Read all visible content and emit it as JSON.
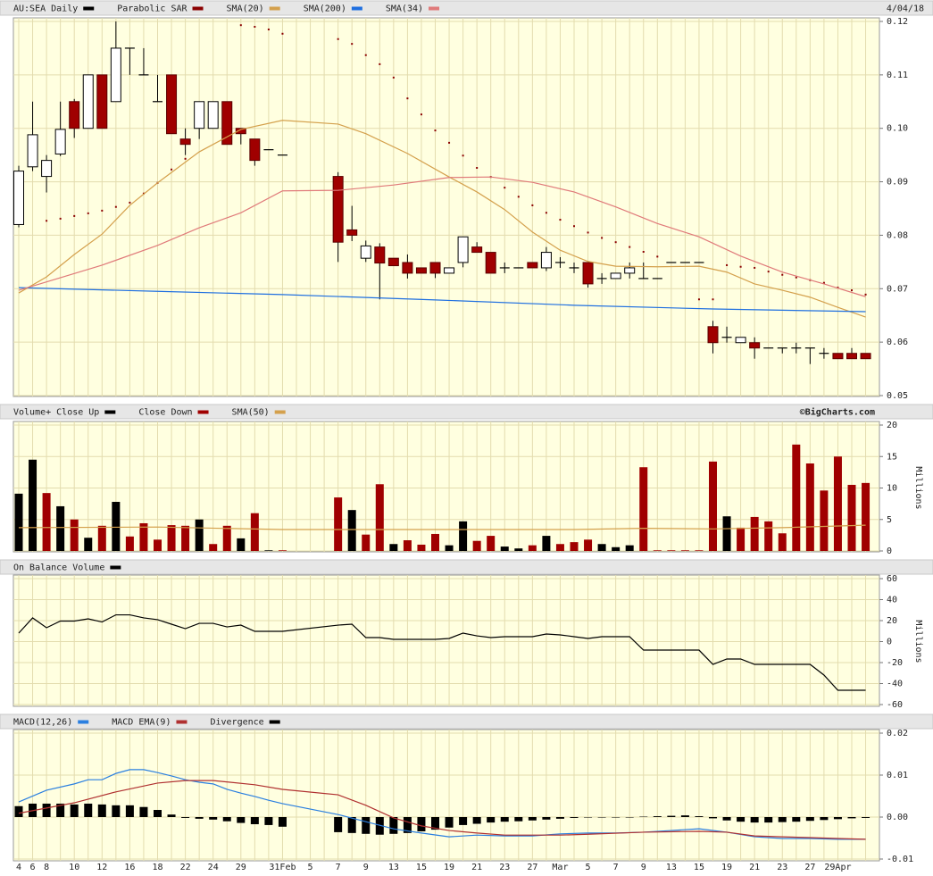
{
  "chart_data": [
    {
      "type": "candlestick",
      "title": "AU:SEA Daily",
      "title_color": "#000000",
      "date": "4/04/18",
      "up_color": "#ffffff",
      "down_color": "#a00000",
      "ylim": [
        0.05,
        0.12
      ],
      "yticks": [
        0.12,
        0.11,
        {
          "value": 0.1,
          "label": "0.10"
        },
        0.09,
        0.08,
        0.07,
        0.06,
        0.05
      ],
      "open": [
        0.082,
        0.0928,
        0.091,
        0.0952,
        0.105,
        0.1,
        0.11,
        0.105,
        0.115,
        0.11,
        0.105,
        0.11,
        0.098,
        0.1,
        0.1,
        0.105,
        0.1,
        0.098,
        0.096,
        0.095,
        null,
        null,
        null,
        0.091,
        0.081,
        0.0757,
        0.0778,
        0.0757,
        0.0749,
        0.0739,
        0.0749,
        0.0729,
        0.0749,
        0.0778,
        0.0768,
        0.0739,
        0.0739,
        0.0749,
        0.0739,
        0.0749,
        0.0739,
        0.0749,
        0.0719,
        0.0719,
        0.0729,
        0.0719,
        0.0719,
        0.0749,
        0.0749,
        0.0749,
        0.0629,
        0.0609,
        0.0599,
        0.0599,
        0.0589,
        0.0589,
        0.0589,
        0.0589,
        0.0579,
        0.0579,
        0.0579,
        0.0579
      ],
      "high": [
        0.093,
        0.105,
        0.095,
        0.105,
        0.1055,
        0.11,
        0.11,
        0.12,
        0.115,
        0.115,
        0.11,
        0.11,
        0.1,
        0.105,
        0.105,
        0.105,
        0.1,
        0.098,
        0.096,
        0.095,
        null,
        null,
        null,
        0.0918,
        0.0855,
        0.079,
        0.0785,
        0.0757,
        0.0764,
        0.0739,
        0.0749,
        0.0739,
        0.0797,
        0.0787,
        0.0768,
        0.0749,
        0.0739,
        0.0749,
        0.0778,
        0.0759,
        0.0749,
        0.0749,
        0.0729,
        0.0729,
        0.0749,
        0.0749,
        0.0719,
        0.0749,
        0.0749,
        0.0749,
        0.064,
        0.0629,
        0.0609,
        0.0609,
        0.0589,
        0.0589,
        0.0599,
        0.0589,
        0.0589,
        0.0579,
        0.0589,
        0.0579
      ],
      "low": [
        0.0815,
        0.092,
        0.088,
        0.0948,
        0.0982,
        0.1,
        0.1,
        0.105,
        0.11,
        0.11,
        0.105,
        0.099,
        0.095,
        0.098,
        0.1,
        0.097,
        0.097,
        0.093,
        0.096,
        0.095,
        null,
        null,
        null,
        0.075,
        0.0789,
        0.075,
        0.068,
        0.0743,
        0.0719,
        0.0729,
        0.072,
        0.0729,
        0.074,
        0.0768,
        0.0729,
        0.0729,
        0.0739,
        0.0739,
        0.0733,
        0.0739,
        0.0729,
        0.0702,
        0.0709,
        0.0719,
        0.0719,
        0.0719,
        0.0719,
        0.0749,
        0.0749,
        0.0749,
        0.0579,
        0.0599,
        0.0599,
        0.0569,
        0.0589,
        0.0579,
        0.0579,
        0.0559,
        0.0569,
        0.0569,
        0.0569,
        0.0569
      ],
      "close": [
        0.092,
        0.0988,
        0.094,
        0.0998,
        0.1,
        0.11,
        0.1,
        0.115,
        0.115,
        0.11,
        0.105,
        0.099,
        0.097,
        0.105,
        0.105,
        0.097,
        0.099,
        0.094,
        0.096,
        0.095,
        null,
        null,
        null,
        0.0787,
        0.08,
        0.078,
        0.0748,
        0.0743,
        0.0729,
        0.0729,
        0.0729,
        0.0739,
        0.0797,
        0.0768,
        0.0729,
        0.0739,
        0.0739,
        0.0739,
        0.0768,
        0.0749,
        0.0739,
        0.0709,
        0.0719,
        0.0729,
        0.0739,
        0.0719,
        0.0719,
        0.0749,
        0.0749,
        0.0749,
        0.0599,
        0.0609,
        0.0609,
        0.0589,
        0.0589,
        0.0589,
        0.0589,
        0.0589,
        0.0579,
        0.0569,
        0.0569,
        0.0569
      ],
      "series": [
        {
          "name": "Parabolic SAR",
          "color": "#8b0000",
          "style": "dots",
          "x": [
            2,
            3,
            4,
            5,
            6,
            7,
            8,
            9,
            10,
            11,
            12,
            16,
            17,
            18,
            19,
            23,
            24,
            25,
            26,
            27,
            28,
            29,
            30,
            31,
            32,
            33,
            34,
            35,
            36,
            37,
            38,
            39,
            40,
            41,
            42,
            43,
            44,
            45,
            46,
            49,
            50,
            51,
            52,
            53,
            54,
            55,
            56,
            57,
            58,
            59,
            60,
            61
          ],
          "values": [
            0.0827,
            0.0831,
            0.0836,
            0.0841,
            0.0846,
            0.0853,
            0.0861,
            0.0878,
            0.0898,
            0.0923,
            0.0943,
            0.1193,
            0.119,
            0.1185,
            0.1177,
            0.1167,
            0.1158,
            0.1137,
            0.112,
            0.1095,
            0.1056,
            0.1026,
            0.0996,
            0.0973,
            0.0949,
            0.0926,
            0.0909,
            0.0889,
            0.0872,
            0.0856,
            0.0842,
            0.0829,
            0.0817,
            0.0805,
            0.0795,
            0.0787,
            0.0778,
            0.0769,
            0.076,
            0.068,
            0.068,
            0.0744,
            0.0741,
            0.0739,
            0.0732,
            0.0726,
            0.0721,
            0.0716,
            0.0711,
            0.0702,
            0.0697,
            0.0689
          ]
        },
        {
          "name": "SMA(20)",
          "color": "#d4a04c",
          "x": [
            0,
            2,
            4,
            6,
            8,
            10,
            13,
            16,
            19,
            23,
            25,
            28,
            31,
            33,
            35,
            37,
            39,
            41,
            43,
            46,
            49,
            51,
            53,
            55,
            57,
            59,
            61
          ],
          "values": [
            0.0692,
            0.0722,
            0.0764,
            0.0802,
            0.0856,
            0.0898,
            0.0956,
            0.0998,
            0.1015,
            0.1008,
            0.099,
            0.0953,
            0.0909,
            0.0881,
            0.0848,
            0.0806,
            0.0772,
            0.0751,
            0.0742,
            0.0741,
            0.0742,
            0.0731,
            0.0709,
            0.0697,
            0.0684,
            0.0665,
            0.0647
          ]
        },
        {
          "name": "SMA(200)",
          "color": "#1f6fe0",
          "x": [
            0,
            10,
            19,
            30,
            40,
            50,
            61
          ],
          "values": [
            0.0702,
            0.0695,
            0.0689,
            0.0679,
            0.0669,
            0.0662,
            0.0657
          ]
        },
        {
          "name": "SMA(34)",
          "color": "#e07a7a",
          "x": [
            0,
            6,
            10,
            13,
            16,
            19,
            23,
            27,
            31,
            34,
            37,
            40,
            43,
            46,
            49,
            52,
            55,
            58,
            61
          ],
          "values": [
            0.0697,
            0.0744,
            0.0781,
            0.0814,
            0.0842,
            0.0883,
            0.0884,
            0.0894,
            0.0908,
            0.0909,
            0.0899,
            0.0881,
            0.0853,
            0.0822,
            0.0797,
            0.0761,
            0.0731,
            0.0709,
            0.0685
          ]
        }
      ]
    },
    {
      "type": "volume",
      "credit": "©BigCharts.com",
      "ylabel": "Millions",
      "ylim": [
        0,
        20
      ],
      "yticks": [
        20,
        15,
        10,
        5,
        0
      ],
      "series": [
        {
          "name": "Volume+ Close Up",
          "color": "#000000",
          "values": [
            9.1,
            14.5,
            null,
            7.1,
            null,
            2.1,
            null,
            7.8,
            null,
            null,
            null,
            null,
            null,
            5,
            null,
            null,
            2,
            null,
            0.1,
            null,
            null,
            null,
            null,
            null,
            6.5,
            null,
            null,
            1.1,
            null,
            null,
            null,
            0.9,
            4.7,
            null,
            null,
            0.7,
            0.4,
            null,
            2.4,
            null,
            null,
            null,
            1.1,
            0.6,
            0.9,
            null,
            null,
            null,
            null,
            null,
            null,
            5.5,
            null,
            null,
            null,
            null,
            null,
            null,
            null,
            null,
            null,
            null
          ]
        },
        {
          "name": "Close Down",
          "color": "#a00000",
          "values": [
            null,
            null,
            9.2,
            null,
            5,
            null,
            4,
            null,
            2.3,
            4.4,
            1.8,
            4.1,
            4,
            null,
            1.1,
            4,
            null,
            6,
            null,
            0.1,
            null,
            null,
            null,
            8.5,
            null,
            2.6,
            10.6,
            null,
            1.7,
            1,
            2.7,
            null,
            null,
            1.6,
            2.4,
            null,
            null,
            0.9,
            null,
            1.1,
            1.4,
            1.8,
            null,
            null,
            null,
            13.3,
            0.1,
            0.1,
            0.1,
            0.1,
            14.2,
            null,
            3.7,
            5.4,
            4.7,
            2.8,
            16.9,
            13.9,
            9.6,
            15,
            10.5,
            10.8
          ]
        },
        {
          "name": "SMA(50)",
          "color": "#d4a04c",
          "x": [
            0,
            10,
            19,
            23,
            30,
            40,
            45,
            50,
            55,
            61
          ],
          "values": [
            3.7,
            3.8,
            3.4,
            3.4,
            3.4,
            3.4,
            3.6,
            3.5,
            3.7,
            4.1
          ]
        }
      ]
    },
    {
      "type": "line",
      "ylabel": "Millions",
      "ylim": [
        -60,
        60
      ],
      "yticks": [
        60,
        40,
        20,
        0,
        -20,
        -40,
        -60
      ],
      "series": [
        {
          "name": "On Balance Volume",
          "color": "#000000",
          "x": [
            0,
            1,
            2,
            3,
            4,
            5,
            6,
            7,
            8,
            9,
            10,
            11,
            12,
            13,
            14,
            15,
            16,
            17,
            18,
            19,
            23,
            24,
            25,
            26,
            27,
            28,
            29,
            30,
            31,
            32,
            33,
            34,
            35,
            36,
            37,
            38,
            39,
            40,
            41,
            42,
            43,
            44,
            45,
            46,
            47,
            48,
            49,
            50,
            51,
            52,
            53,
            54,
            55,
            56,
            57,
            58,
            59,
            60,
            61
          ],
          "values": [
            8.1,
            22.6,
            13.2,
            19.6,
            19.6,
            21.7,
            18.7,
            25.5,
            25.5,
            22.6,
            20.9,
            16.6,
            12.3,
            17.4,
            17.4,
            14,
            15.7,
            9.8,
            9.8,
            9.8,
            15.7,
            16.6,
            3.8,
            3.8,
            2.1,
            2.1,
            2.1,
            2.1,
            3,
            8.1,
            5.5,
            3.8,
            4.7,
            4.7,
            4.7,
            7.2,
            6.4,
            4.7,
            3,
            4.7,
            4.7,
            4.7,
            -8.1,
            -8.1,
            -8.1,
            -8.1,
            -8.1,
            -21.7,
            -16.6,
            -16.6,
            -21.7,
            -21.7,
            -21.7,
            -21.7,
            -21.7,
            -31.9,
            -46.4,
            -46.4,
            -46.4
          ]
        }
      ]
    },
    {
      "type": "macd",
      "ylim": [
        -0.01,
        0.02
      ],
      "yticks": [
        0.02,
        0.01,
        {
          "value": 0,
          "label": "0.00"
        },
        -0.01
      ],
      "categories": [
        "4",
        "6",
        "8",
        null,
        "10",
        null,
        "12",
        null,
        "16",
        null,
        "18",
        null,
        "22",
        null,
        "24",
        null,
        "29",
        null,
        null,
        "31Feb",
        null,
        "5",
        null,
        "7",
        null,
        "9",
        null,
        "13",
        null,
        "15",
        null,
        "19",
        null,
        "21",
        null,
        "23",
        null,
        "27",
        null,
        "Mar",
        null,
        "5",
        null,
        "7",
        null,
        "9",
        null,
        "13",
        null,
        "15",
        null,
        "19",
        null,
        "21",
        null,
        "23",
        null,
        "27",
        null,
        "29Apr",
        null,
        null
      ],
      "series": [
        {
          "name": "MACD(12,26)",
          "color": "#2a7fe0",
          "x": [
            0,
            2,
            4,
            5,
            6,
            7,
            8,
            9,
            10,
            11,
            12,
            13,
            14,
            15,
            16,
            17,
            18,
            19,
            23,
            25,
            27,
            29,
            31,
            33,
            35,
            37,
            39,
            41,
            43,
            45,
            47,
            49,
            51,
            53,
            55,
            57,
            59,
            61
          ],
          "values": [
            0.0036,
            0.0064,
            0.0079,
            0.0089,
            0.0089,
            0.0104,
            0.0113,
            0.0113,
            0.0106,
            0.0098,
            0.0089,
            0.0083,
            0.0079,
            0.0066,
            0.0057,
            0.0049,
            0.004,
            0.0032,
            0.0006,
            -0.0011,
            -0.0028,
            -0.0038,
            -0.0047,
            -0.0043,
            -0.0045,
            -0.0045,
            -0.004,
            -0.0038,
            -0.0038,
            -0.0036,
            -0.0032,
            -0.0028,
            -0.0036,
            -0.0047,
            -0.0051,
            -0.0051,
            -0.0053,
            -0.0053
          ]
        },
        {
          "name": "MACD EMA(9)",
          "color": "#b03030",
          "x": [
            0,
            4,
            7,
            10,
            12,
            14,
            17,
            19,
            23,
            25,
            27,
            29,
            31,
            33,
            35,
            37,
            39,
            41,
            45,
            49,
            51,
            53,
            55,
            57,
            59,
            61
          ],
          "values": [
            0.0009,
            0.0034,
            0.006,
            0.0081,
            0.0087,
            0.0087,
            0.0077,
            0.0066,
            0.0053,
            0.0028,
            -0.0002,
            -0.0021,
            -0.0032,
            -0.0038,
            -0.0043,
            -0.0043,
            -0.0043,
            -0.0041,
            -0.0036,
            -0.0034,
            -0.0036,
            -0.0045,
            -0.0047,
            -0.0049,
            -0.0051,
            -0.0053
          ]
        },
        {
          "name": "Divergence",
          "color": "#000000",
          "values": [
            0.0026,
            0.0032,
            0.0032,
            0.0032,
            0.003,
            0.0032,
            0.003,
            0.0028,
            0.0028,
            0.0024,
            0.0017,
            0.0006,
            -0.0002,
            -0.0004,
            -0.0006,
            -0.001,
            -0.0014,
            -0.0017,
            -0.0019,
            -0.0023,
            null,
            null,
            null,
            -0.0036,
            -0.0038,
            -0.004,
            -0.0042,
            -0.004,
            -0.0038,
            -0.0034,
            -0.003,
            -0.0025,
            -0.0019,
            -0.0016,
            -0.0013,
            -0.0011,
            -0.001,
            -0.0008,
            -0.0006,
            -0.0004,
            -0.0002,
            -0.0001,
            0,
            0,
            0,
            0.0001,
            0.0002,
            0.0003,
            0.0004,
            0.0002,
            -0.0003,
            -0.0008,
            -0.0011,
            -0.0013,
            -0.0013,
            -0.0012,
            -0.0011,
            -0.0009,
            -0.0007,
            -0.0005,
            -0.0003,
            -0.0002
          ]
        }
      ]
    }
  ]
}
